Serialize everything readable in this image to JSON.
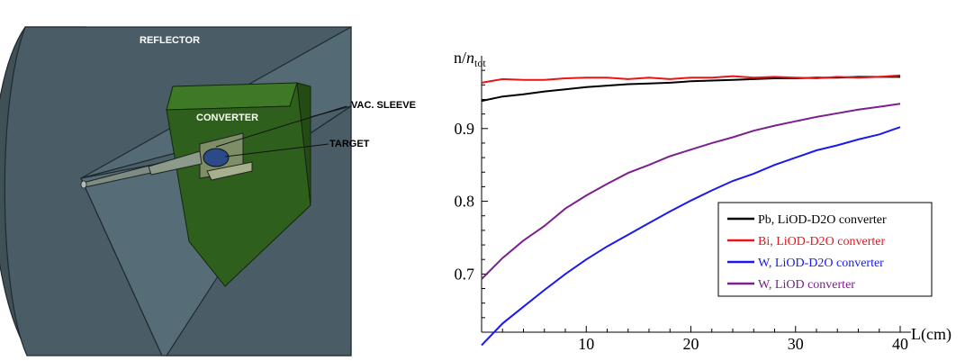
{
  "diagram": {
    "labels": {
      "reflector": "REFLECTOR",
      "converter": "CONVERTER",
      "vac_sleeve": "VAC. SLEEVE",
      "target": "TARGET"
    },
    "colors": {
      "reflector_body": "#4a5d66",
      "reflector_inner": "#3f5057",
      "converter_face": "#2f5f1d",
      "converter_edge": "#3e7a26",
      "text": "#ffffff",
      "target": "#2a4a8a"
    }
  },
  "chart_data": {
    "type": "line",
    "ylabel_main": "n/",
    "ylabel_italic": "n",
    "ylabel_sub": "tot",
    "xlabel": "L(cm)",
    "xlim": [
      0,
      40
    ],
    "ylim": [
      0.62,
      1.0
    ],
    "xticks": [
      "10",
      "20",
      "30",
      "40"
    ],
    "xtick_values": [
      10,
      20,
      30,
      40
    ],
    "yticks": [
      "0.7",
      "0.8",
      "0.9"
    ],
    "ytick_values": [
      0.7,
      0.8,
      0.9
    ],
    "grid": false,
    "legend_position": "bottom-right",
    "x": [
      0,
      2,
      4,
      6,
      8,
      10,
      12,
      14,
      16,
      18,
      20,
      22,
      24,
      26,
      28,
      30,
      32,
      34,
      36,
      38,
      40
    ],
    "series": [
      {
        "name": "Pb, LiOD-D2O converter",
        "color": "#000000",
        "values": [
          0.938,
          0.944,
          0.947,
          0.951,
          0.954,
          0.957,
          0.959,
          0.961,
          0.962,
          0.963,
          0.965,
          0.966,
          0.967,
          0.968,
          0.969,
          0.969,
          0.97,
          0.97,
          0.971,
          0.971,
          0.971
        ]
      },
      {
        "name": "Bi, LiOD-D2O converter",
        "color": "#e8141a",
        "values": [
          0.963,
          0.968,
          0.967,
          0.967,
          0.969,
          0.97,
          0.97,
          0.968,
          0.97,
          0.968,
          0.97,
          0.97,
          0.972,
          0.97,
          0.971,
          0.97,
          0.969,
          0.971,
          0.97,
          0.971,
          0.973
        ]
      },
      {
        "name": "W, LiOD-D2O converter",
        "color": "#1a1aee",
        "values": [
          0.602,
          0.632,
          0.655,
          0.678,
          0.7,
          0.72,
          0.738,
          0.754,
          0.77,
          0.786,
          0.801,
          0.815,
          0.828,
          0.838,
          0.85,
          0.86,
          0.87,
          0.877,
          0.885,
          0.892,
          0.902
        ]
      },
      {
        "name": "W, LiOD converter",
        "color": "#7c1f8f",
        "values": [
          0.693,
          0.722,
          0.746,
          0.766,
          0.79,
          0.808,
          0.824,
          0.839,
          0.85,
          0.862,
          0.871,
          0.88,
          0.888,
          0.897,
          0.904,
          0.91,
          0.916,
          0.921,
          0.926,
          0.93,
          0.934
        ]
      }
    ]
  }
}
